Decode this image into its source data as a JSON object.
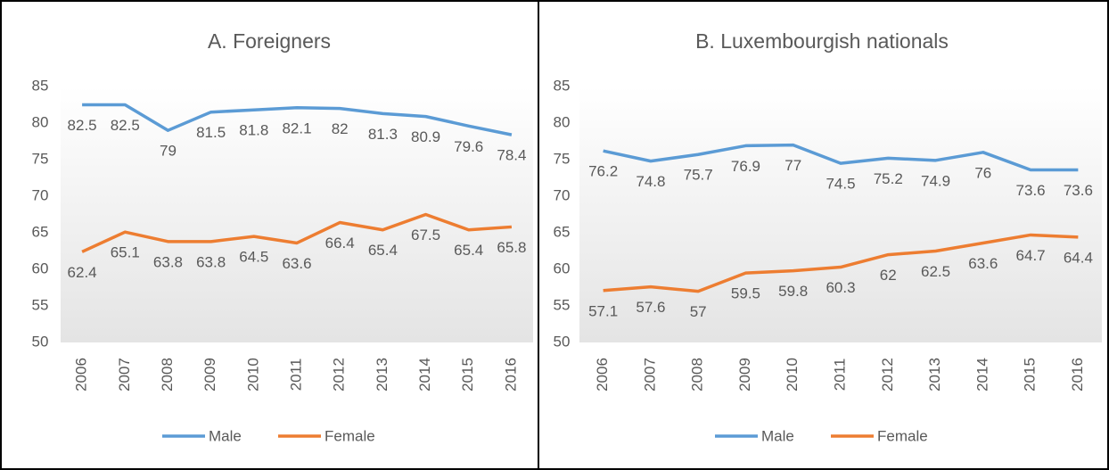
{
  "chart_data": [
    {
      "type": "line",
      "title": "A. Foreigners",
      "categories": [
        "2006",
        "2007",
        "2008",
        "2009",
        "2010",
        "2011",
        "2012",
        "2013",
        "2014",
        "2015",
        "2016"
      ],
      "series": [
        {
          "name": "Male",
          "color": "#5b9bd5",
          "values": [
            82.5,
            82.5,
            79,
            81.5,
            81.8,
            82.1,
            82,
            81.3,
            80.9,
            79.6,
            78.4
          ]
        },
        {
          "name": "Female",
          "color": "#ed7d31",
          "values": [
            62.4,
            65.1,
            63.8,
            63.8,
            64.5,
            63.6,
            66.4,
            65.4,
            67.5,
            65.4,
            65.8
          ]
        }
      ],
      "ylim": [
        50,
        85
      ],
      "yticks": [
        50,
        55,
        60,
        65,
        70,
        75,
        80,
        85
      ],
      "grid": false,
      "legend": "bottom"
    },
    {
      "type": "line",
      "title": "B. Luxembourgish nationals",
      "categories": [
        "2006",
        "2007",
        "2008",
        "2009",
        "2010",
        "2011",
        "2012",
        "2013",
        "2014",
        "2015",
        "2016"
      ],
      "series": [
        {
          "name": "Male",
          "color": "#5b9bd5",
          "values": [
            76.2,
            74.8,
            75.7,
            76.9,
            77,
            74.5,
            75.2,
            74.9,
            76,
            73.6,
            73.6
          ]
        },
        {
          "name": "Female",
          "color": "#ed7d31",
          "values": [
            57.1,
            57.6,
            57,
            59.5,
            59.8,
            60.3,
            62,
            62.5,
            63.6,
            64.7,
            64.4
          ]
        }
      ],
      "ylim": [
        50,
        85
      ],
      "yticks": [
        50,
        55,
        60,
        65,
        70,
        75,
        80,
        85
      ],
      "grid": false,
      "legend": "bottom"
    }
  ]
}
